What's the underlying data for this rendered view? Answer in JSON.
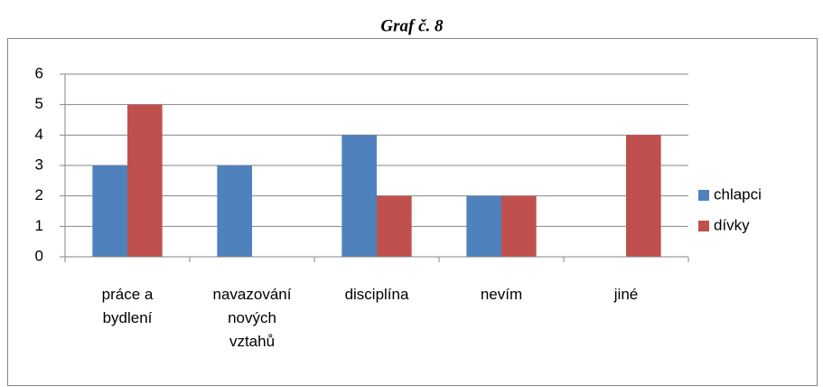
{
  "chart_data": {
    "type": "bar",
    "title": "Graf č. 8",
    "categories": [
      "práce a bydlení",
      "navazování nových vztahů",
      "disciplína",
      "nevím",
      "jiné"
    ],
    "series": [
      {
        "name": "chlapci",
        "color": "#4f81bd",
        "values": [
          3,
          3,
          4,
          2,
          0
        ]
      },
      {
        "name": "dívky",
        "color": "#c0504d",
        "values": [
          5,
          0,
          2,
          2,
          4
        ]
      }
    ],
    "ylim": [
      0,
      6
    ],
    "yticks": [
      0,
      1,
      2,
      3,
      4,
      5,
      6
    ],
    "grid": true,
    "legend": "right"
  }
}
